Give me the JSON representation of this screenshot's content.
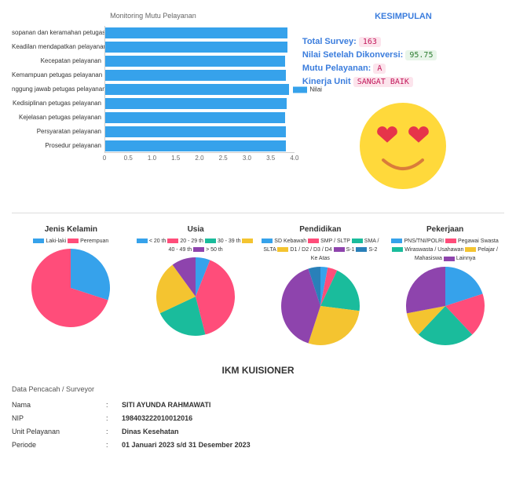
{
  "bar_chart": {
    "title": "Monitoring Mutu Pelayanan",
    "type": "bar-horizontal",
    "categories": [
      "sopanan dan keramahan petugas",
      "Keadilan mendapatkan pelayanan",
      "Kecepatan pelayanan",
      "Kemampuan petugas pelayanan",
      "nggung jawab petugas pelayanan",
      "Kedisiplinan petugas pelayanan",
      "Kejelasan petugas pelayanan",
      "Persyaratan pelayanan",
      "Prosedur pelayanan"
    ],
    "values": [
      3.85,
      3.85,
      3.8,
      3.82,
      3.88,
      3.83,
      3.8,
      3.82,
      3.82
    ],
    "bar_color": "#36a2eb",
    "xlim": [
      0,
      4.0
    ],
    "xtick_step": 0.5,
    "grid_color": "#e0e0e0",
    "legend_label": "Nilai"
  },
  "kesimpulan": {
    "heading": "KESIMPULAN",
    "lines": [
      {
        "label": "Total Survey:",
        "value": "163",
        "badge": "pink"
      },
      {
        "label": "Nilai Setelah Dikonversi:",
        "value": "95.75",
        "badge": "green"
      },
      {
        "label": "Mutu Pelayanan:",
        "value": "A",
        "badge": "pink"
      },
      {
        "label": "Kinerja Unit",
        "value": "SANGAT BAIK",
        "badge": "pink"
      }
    ],
    "emoji": {
      "face": "#ffd93b",
      "eyes": "#e6344a",
      "mouth": "#da7c3a"
    }
  },
  "pies": [
    {
      "title": "Jenis Kelamin",
      "legend": [
        {
          "label": "Laki-laki",
          "color": "#36a2eb"
        },
        {
          "label": "Perempuan",
          "color": "#ff4d7a"
        }
      ],
      "slices": [
        {
          "value": 30,
          "color": "#36a2eb"
        },
        {
          "value": 70,
          "color": "#ff4d7a"
        }
      ]
    },
    {
      "title": "Usia",
      "legend": [
        {
          "label": "< 20 th",
          "color": "#36a2eb"
        },
        {
          "label": "20 - 29 th",
          "color": "#ff4d7a"
        },
        {
          "label": "30 - 39 th",
          "color": "#1abc9c"
        },
        {
          "label": "40 - 49 th",
          "color": "#f4c430"
        },
        {
          "label": "> 50 th",
          "color": "#8e44ad"
        }
      ],
      "slices": [
        {
          "value": 6,
          "color": "#36a2eb"
        },
        {
          "value": 40,
          "color": "#ff4d7a"
        },
        {
          "value": 22,
          "color": "#1abc9c"
        },
        {
          "value": 22,
          "color": "#f4c430"
        },
        {
          "value": 10,
          "color": "#8e44ad"
        }
      ]
    },
    {
      "title": "Pendidikan",
      "legend": [
        {
          "label": "SD Kebawah",
          "color": "#36a2eb"
        },
        {
          "label": "SMP / SLTP",
          "color": "#ff4d7a"
        },
        {
          "label": "SMA / SLTA",
          "color": "#1abc9c"
        },
        {
          "label": "D1 / D2 / D3 / D4",
          "color": "#f4c430"
        },
        {
          "label": "S-1",
          "color": "#8e44ad"
        },
        {
          "label": "S-2 Ke Atas",
          "color": "#2980b9"
        }
      ],
      "slices": [
        {
          "value": 3,
          "color": "#36a2eb"
        },
        {
          "value": 4,
          "color": "#ff4d7a"
        },
        {
          "value": 20,
          "color": "#1abc9c"
        },
        {
          "value": 28,
          "color": "#f4c430"
        },
        {
          "value": 40,
          "color": "#8e44ad"
        },
        {
          "value": 5,
          "color": "#2980b9"
        }
      ]
    },
    {
      "title": "Pekerjaan",
      "legend": [
        {
          "label": "PNS/TNI/POLRI",
          "color": "#36a2eb"
        },
        {
          "label": "Pegawai Swasta",
          "color": "#ff4d7a"
        },
        {
          "label": "Wiraswasta / Usahawan",
          "color": "#1abc9c"
        },
        {
          "label": "Pelajar / Mahasiswa",
          "color": "#f4c430"
        },
        {
          "label": "Lainnya",
          "color": "#8e44ad"
        }
      ],
      "slices": [
        {
          "value": 20,
          "color": "#36a2eb"
        },
        {
          "value": 18,
          "color": "#ff4d7a"
        },
        {
          "value": 24,
          "color": "#1abc9c"
        },
        {
          "value": 10,
          "color": "#f4c430"
        },
        {
          "value": 28,
          "color": "#8e44ad"
        }
      ]
    }
  ],
  "ikm": {
    "heading": "IKM KUISIONER",
    "surveyor_label": "Data Pencacah / Surveyor",
    "rows": [
      {
        "label": "Nama",
        "value": "SITI AYUNDA RAHMAWATI"
      },
      {
        "label": "NIP",
        "value": "198403222010012016"
      },
      {
        "label": "Unit Pelayanan",
        "value": "Dinas Kesehatan"
      },
      {
        "label": "Periode",
        "value": "01 Januari 2023 s/d 31 Desember 2023"
      }
    ]
  }
}
